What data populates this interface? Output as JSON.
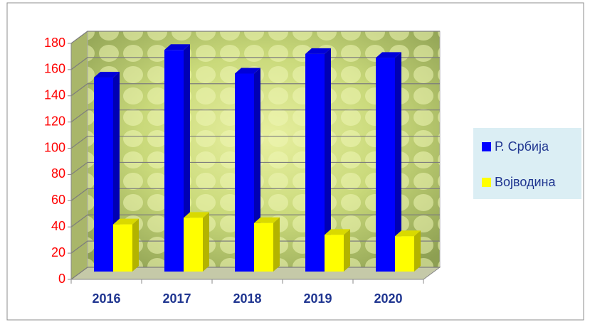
{
  "chart_data": {
    "type": "bar3d",
    "categories": [
      "2016",
      "2017",
      "2018",
      "2019",
      "2020"
    ],
    "series": [
      {
        "name": "Р. Србија",
        "color": "#0000ff",
        "values": [
          148,
          169,
          151,
          166,
          163
        ]
      },
      {
        "name": "Војводина",
        "color": "#ffff00",
        "values": [
          36,
          41,
          37,
          28,
          27
        ]
      }
    ],
    "ylim": [
      0,
      180
    ],
    "yticks": [
      0,
      20,
      40,
      60,
      80,
      100,
      120,
      140,
      160,
      180
    ],
    "grid": true,
    "legend": "right"
  }
}
